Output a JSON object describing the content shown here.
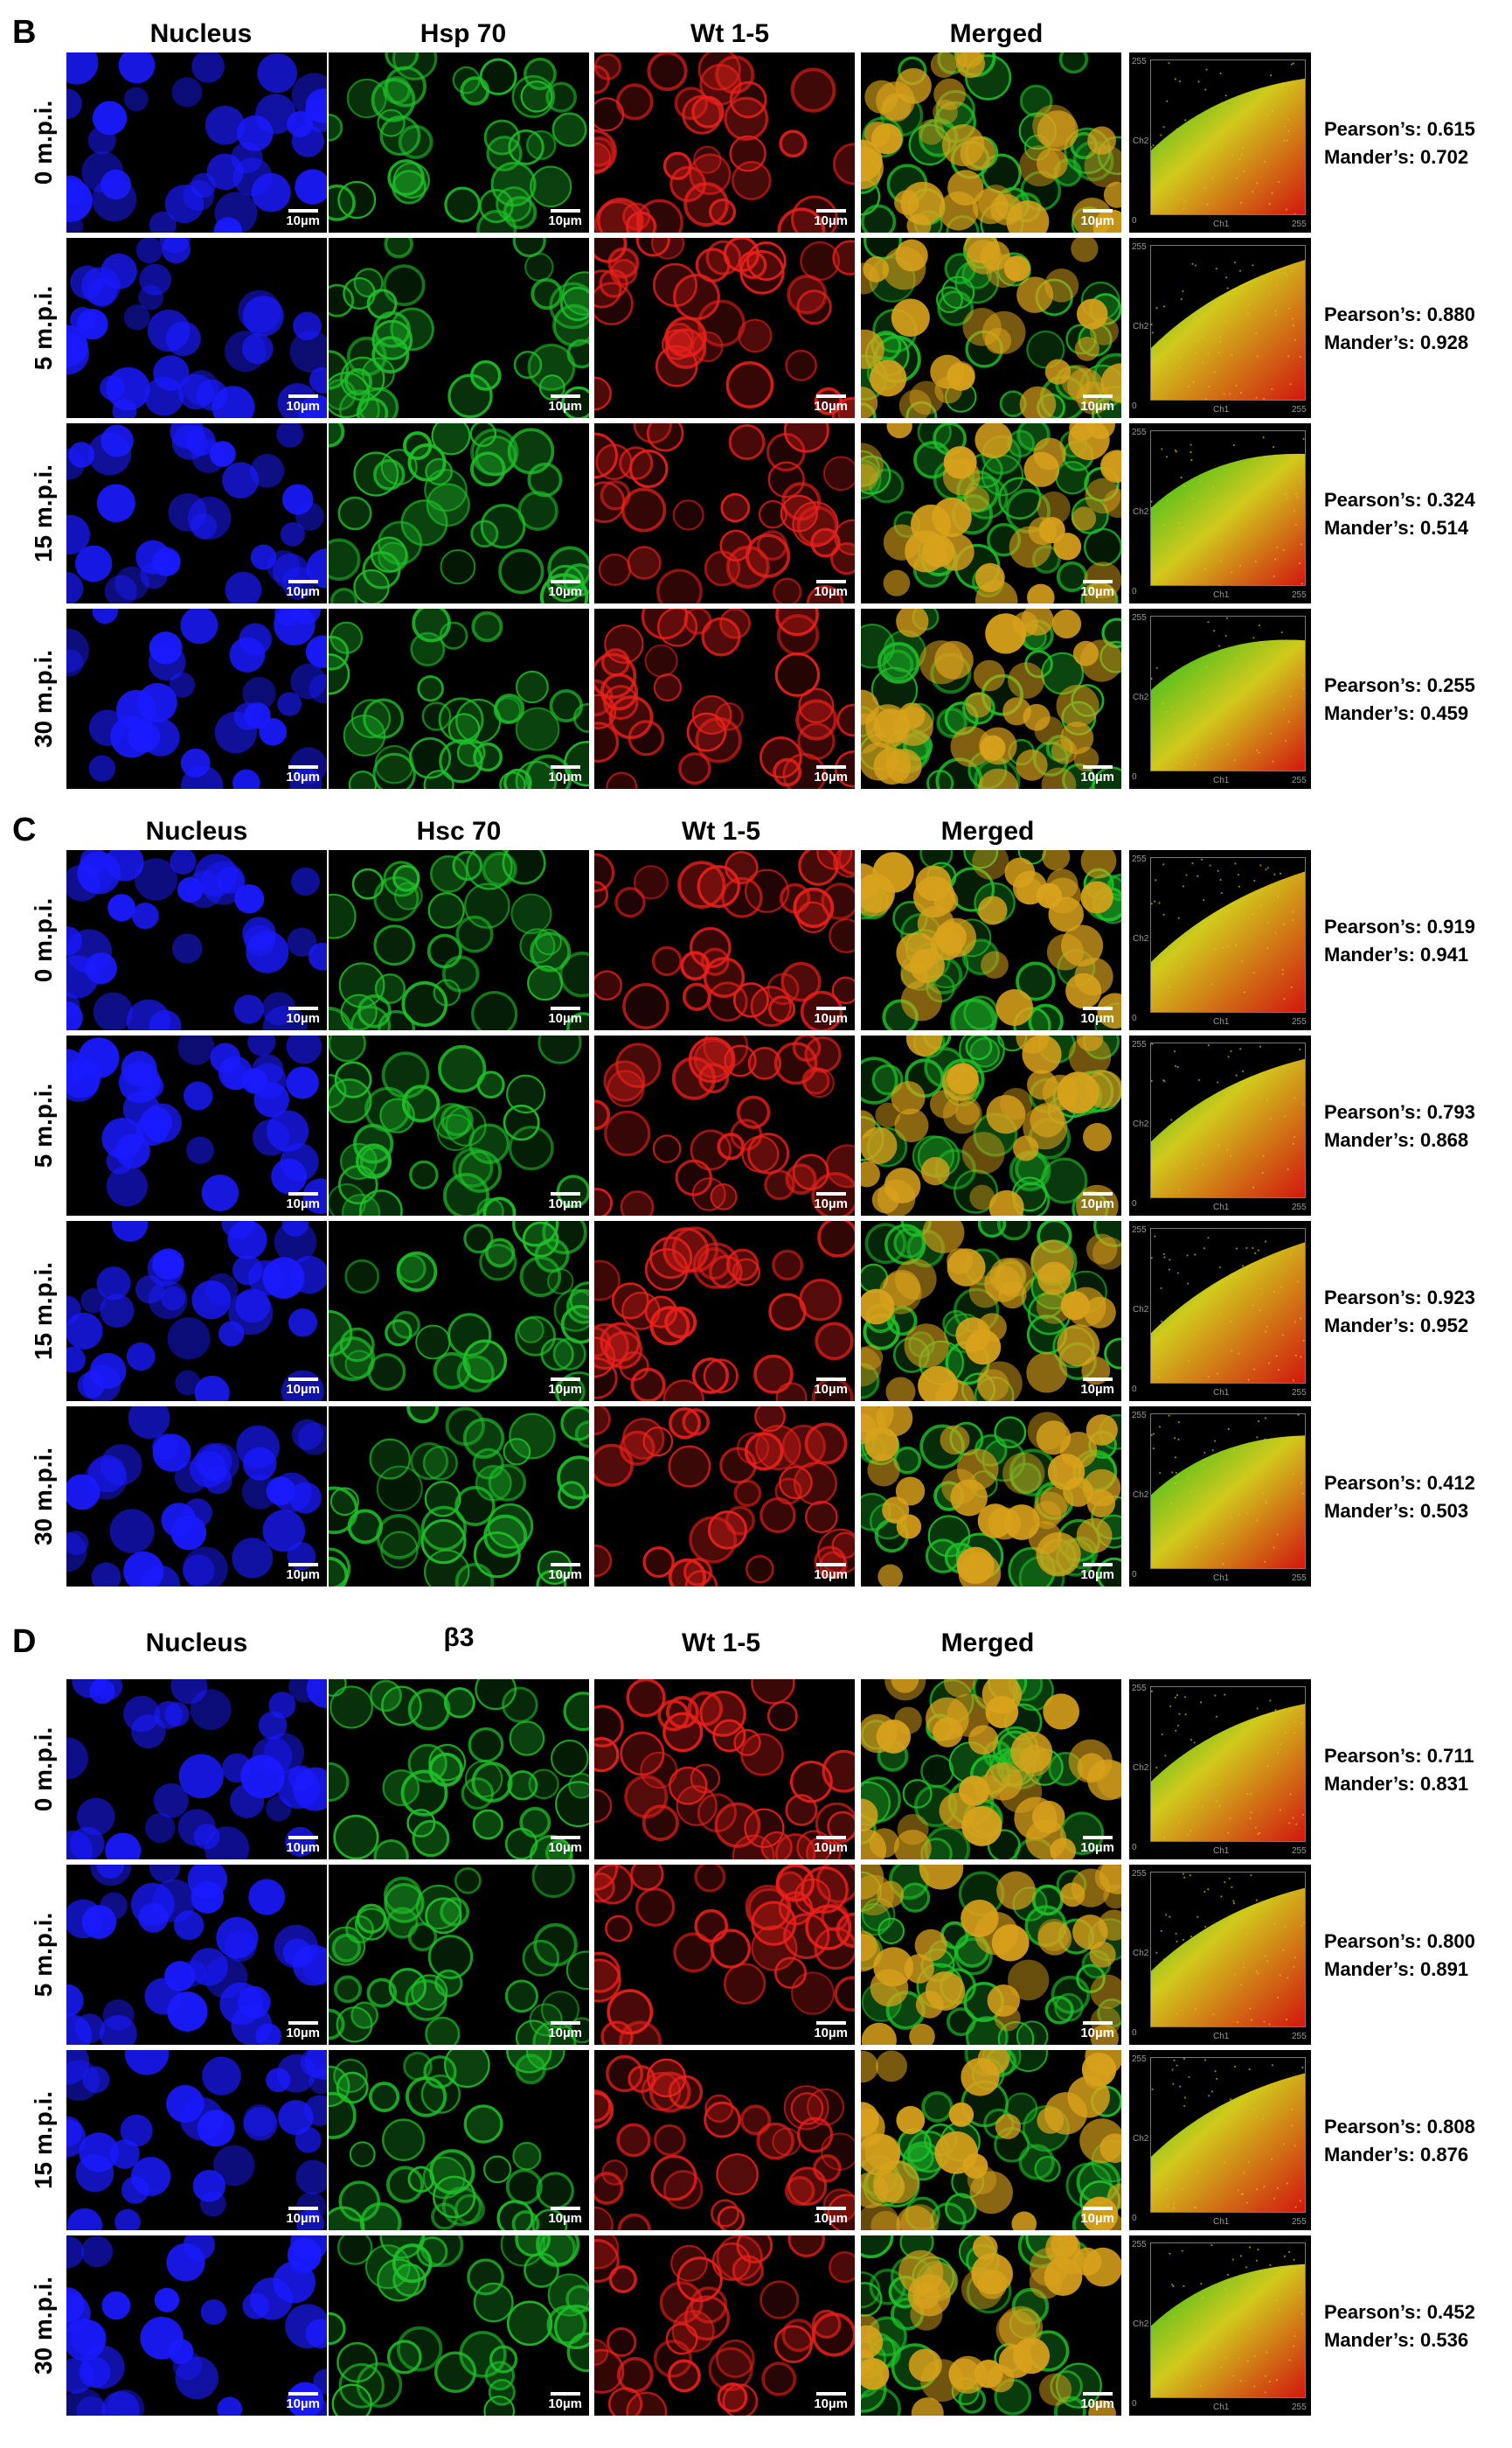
{
  "scale_label": "10µm",
  "scatter_ticks": {
    "max": "255",
    "min": "0",
    "ch1": "Ch1",
    "ch2": "Ch2"
  },
  "channel_colors": {
    "nucleus": "#1a1aff",
    "green": "#1fbf2a",
    "red": "#e8201c",
    "merged": "#d9a21c"
  },
  "panels": [
    {
      "letter": "B",
      "headers": [
        "Nucleus",
        "Hsp 70",
        "Wt 1-5",
        "Merged"
      ],
      "rows": [
        {
          "label": "0 m.p.i.",
          "pearson": "Pearson’s: 0.615",
          "mander": "Mander’s: 0.702"
        },
        {
          "label": "5 m.p.i.",
          "pearson": "Pearson’s: 0.880",
          "mander": "Mander’s: 0.928"
        },
        {
          "label": "15 m.p.i.",
          "pearson": "Pearson’s: 0.324",
          "mander": "Mander’s: 0.514"
        },
        {
          "label": "30 m.p.i.",
          "pearson": "Pearson’s: 0.255",
          "mander": "Mander’s: 0.459"
        }
      ]
    },
    {
      "letter": "C",
      "headers": [
        "Nucleus",
        "Hsc 70",
        "Wt 1-5",
        "Merged"
      ],
      "rows": [
        {
          "label": "0 m.p.i.",
          "pearson": "Pearson’s: 0.919",
          "mander": "Mander’s: 0.941"
        },
        {
          "label": "5 m.p.i.",
          "pearson": "Pearson’s: 0.793",
          "mander": "Mander’s: 0.868"
        },
        {
          "label": "15 m.p.i.",
          "pearson": "Pearson’s: 0.923",
          "mander": "Mander’s: 0.952"
        },
        {
          "label": "30 m.p.i.",
          "pearson": "Pearson’s: 0.412",
          "mander": "Mander’s: 0.503"
        }
      ]
    },
    {
      "letter": "D",
      "headers": [
        "Nucleus",
        "β3",
        "Wt 1-5",
        "Merged"
      ],
      "rows": [
        {
          "label": "0 m.p.i.",
          "pearson": "Pearson’s: 0.711",
          "mander": "Mander’s: 0.831"
        },
        {
          "label": "5 m.p.i.",
          "pearson": "Pearson’s: 0.800",
          "mander": "Mander’s: 0.891"
        },
        {
          "label": "15 m.p.i.",
          "pearson": "Pearson’s: 0.808",
          "mander": "Mander’s: 0.876"
        },
        {
          "label": "30 m.p.i.",
          "pearson": "Pearson’s: 0.452",
          "mander": "Mander’s: 0.536"
        }
      ]
    }
  ]
}
